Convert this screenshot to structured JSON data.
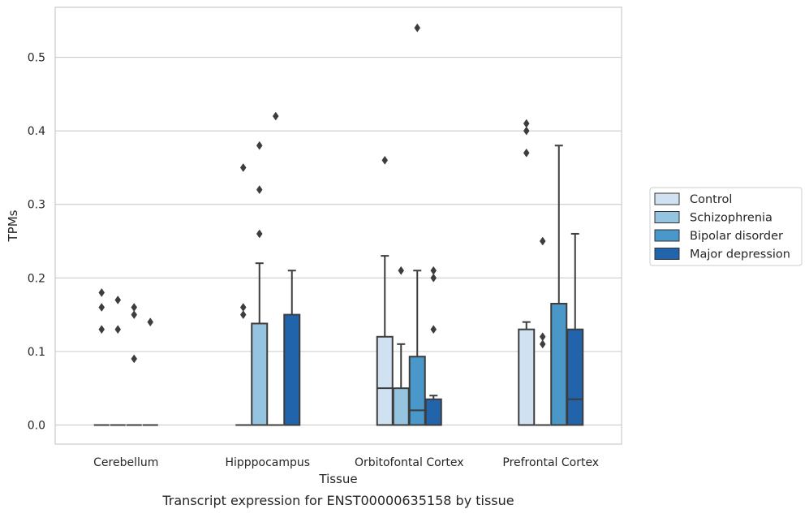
{
  "caption": "Transcript expression for ENST00000635158 by tissue",
  "chart_data": {
    "type": "boxplot",
    "xlabel": "Tissue",
    "ylabel": "TPMs",
    "ylim": [
      -0.026,
      0.568
    ],
    "yticks": [
      0.0,
      0.1,
      0.2,
      0.3,
      0.4,
      0.5
    ],
    "ytick_labels": [
      "0.0",
      "0.1",
      "0.2",
      "0.3",
      "0.4",
      "0.5"
    ],
    "grid": "horizontal",
    "legend_position": "right",
    "categories": [
      "Cerebellum",
      "Hipppocampus",
      "Orbitofontal Cortex",
      "Prefrontal Cortex"
    ],
    "series": [
      {
        "name": "Control",
        "color": "#d0e1f2",
        "boxes": [
          {
            "q1": 0,
            "median": 0,
            "q3": 0,
            "whislo": 0,
            "whishi": 0,
            "fliers": [
              0.18,
              0.16,
              0.13
            ]
          },
          {
            "q1": 0,
            "median": 0,
            "q3": 0,
            "whislo": 0,
            "whishi": 0,
            "fliers": [
              0.35,
              0.16,
              0.15
            ]
          },
          {
            "q1": 0,
            "median": 0.05,
            "q3": 0.12,
            "whislo": 0,
            "whishi": 0.23,
            "fliers": [
              0.36
            ]
          },
          {
            "q1": 0,
            "median": 0,
            "q3": 0.13,
            "whislo": 0,
            "whishi": 0.14,
            "fliers": [
              0.41,
              0.4,
              0.37
            ]
          }
        ]
      },
      {
        "name": "Schizophrenia",
        "color": "#94c4df",
        "boxes": [
          {
            "q1": 0,
            "median": 0,
            "q3": 0,
            "whislo": 0,
            "whishi": 0,
            "fliers": [
              0.17,
              0.13
            ]
          },
          {
            "q1": 0,
            "median": 0,
            "q3": 0.138,
            "whislo": 0,
            "whishi": 0.22,
            "fliers": [
              0.38,
              0.32,
              0.26
            ]
          },
          {
            "q1": 0,
            "median": 0,
            "q3": 0.05,
            "whislo": 0,
            "whishi": 0.11,
            "fliers": [
              0.21
            ]
          },
          {
            "q1": 0,
            "median": 0,
            "q3": 0,
            "whislo": 0,
            "whishi": 0,
            "fliers": [
              0.25,
              0.12,
              0.11
            ]
          }
        ]
      },
      {
        "name": "Bipolar disorder",
        "color": "#4a98c9",
        "boxes": [
          {
            "q1": 0,
            "median": 0,
            "q3": 0,
            "whislo": 0,
            "whishi": 0,
            "fliers": [
              0.16,
              0.15,
              0.09
            ]
          },
          {
            "q1": 0,
            "median": 0,
            "q3": 0,
            "whislo": 0,
            "whishi": 0,
            "fliers": [
              0.42
            ]
          },
          {
            "q1": 0,
            "median": 0.02,
            "q3": 0.093,
            "whislo": 0,
            "whishi": 0.21,
            "fliers": [
              0.54
            ]
          },
          {
            "q1": 0,
            "median": 0,
            "q3": 0.165,
            "whislo": 0,
            "whishi": 0.38,
            "fliers": []
          }
        ]
      },
      {
        "name": "Major depression",
        "color": "#2164ab",
        "boxes": [
          {
            "q1": 0,
            "median": 0,
            "q3": 0,
            "whislo": 0,
            "whishi": 0,
            "fliers": [
              0.14
            ]
          },
          {
            "q1": 0,
            "median": 0,
            "q3": 0.15,
            "whislo": 0,
            "whishi": 0.21,
            "fliers": []
          },
          {
            "q1": 0,
            "median": 0,
            "q3": 0.035,
            "whislo": 0,
            "whishi": 0.04,
            "fliers": [
              0.21,
              0.2,
              0.13
            ]
          },
          {
            "q1": 0,
            "median": 0.035,
            "q3": 0.13,
            "whislo": 0,
            "whishi": 0.26,
            "fliers": []
          }
        ]
      }
    ]
  }
}
